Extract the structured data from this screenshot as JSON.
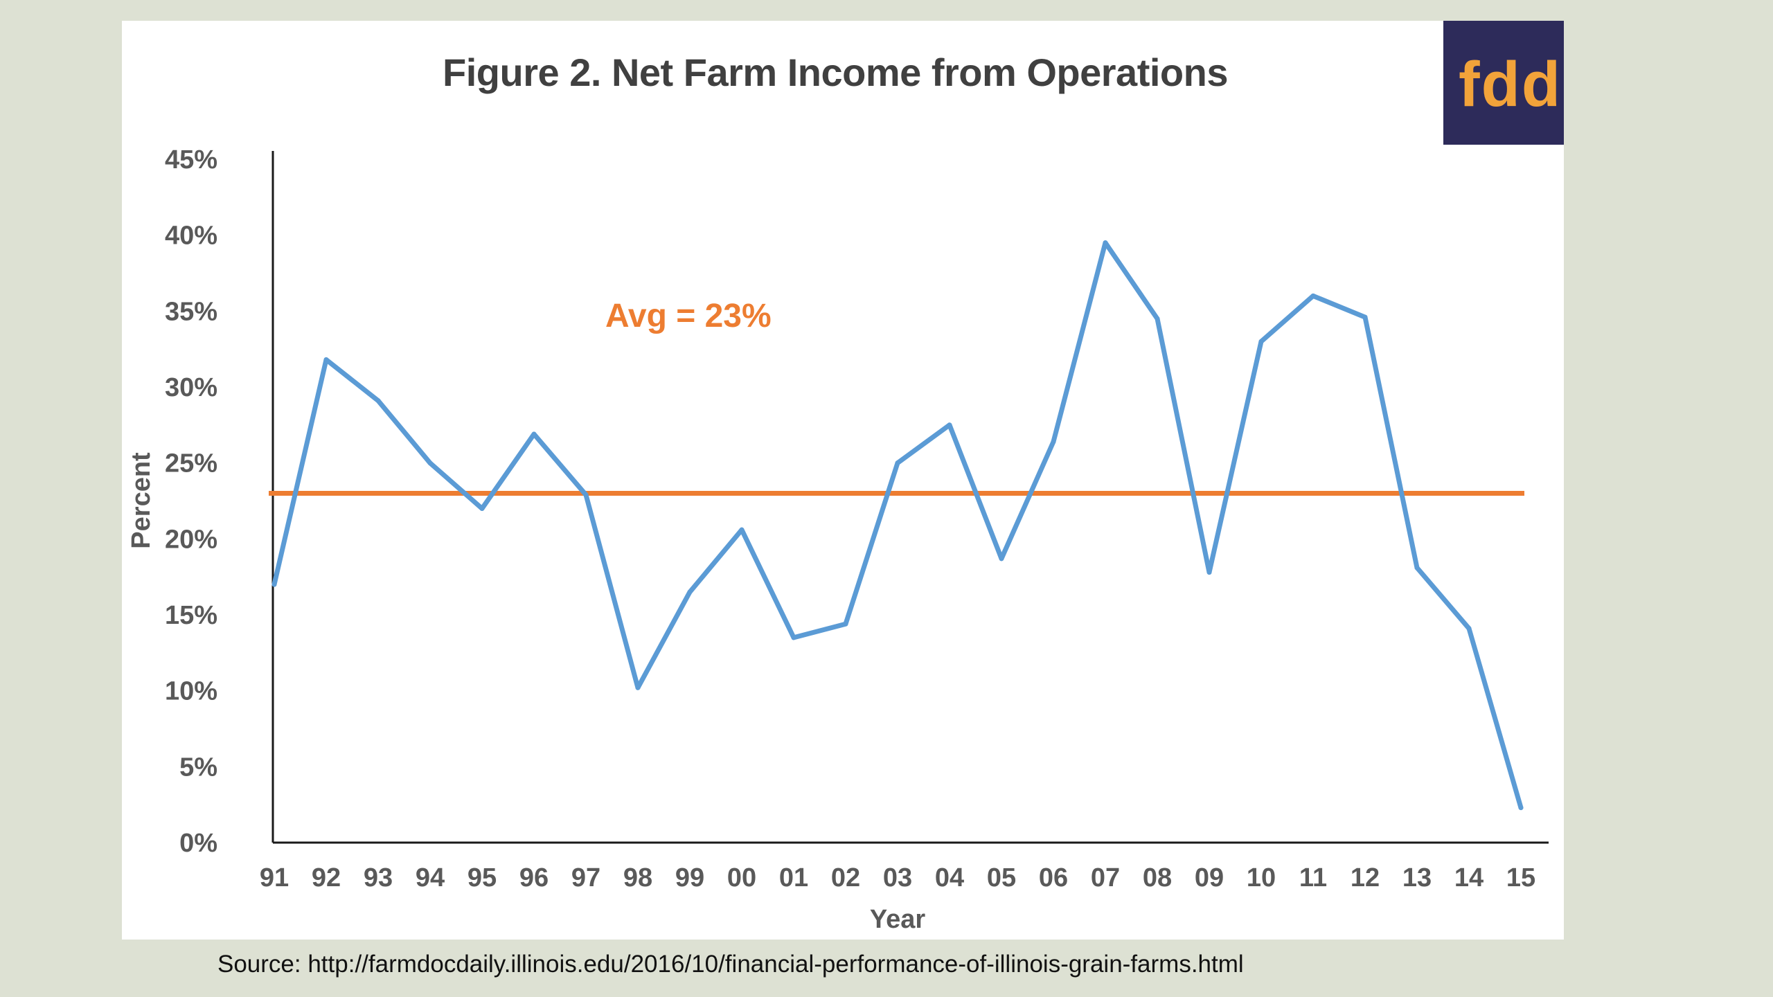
{
  "chart_data": {
    "type": "line",
    "title": "Figure 2. Net Farm Income from Operations",
    "xlabel": "Year",
    "ylabel": "Percent",
    "categories": [
      "91",
      "92",
      "93",
      "94",
      "95",
      "96",
      "97",
      "98",
      "99",
      "00",
      "01",
      "02",
      "03",
      "04",
      "05",
      "06",
      "07",
      "08",
      "09",
      "10",
      "11",
      "12",
      "13",
      "14",
      "15"
    ],
    "series": [
      {
        "name": "Net Farm Income from Operations",
        "values": [
          17.0,
          31.8,
          29.1,
          25.0,
          22.0,
          26.9,
          22.9,
          10.2,
          16.5,
          20.6,
          13.5,
          14.4,
          25.0,
          27.5,
          18.7,
          26.4,
          39.5,
          34.5,
          17.8,
          33.0,
          36.0,
          34.6,
          18.1,
          14.1,
          2.3
        ],
        "color": "#5b9bd5"
      }
    ],
    "reference_line": {
      "label": "Avg = 23%",
      "value": 23,
      "color": "#ed7d31"
    },
    "ylim": [
      0,
      45
    ],
    "yticks": [
      0,
      5,
      10,
      15,
      20,
      25,
      30,
      35,
      40,
      45
    ],
    "ytick_suffix": "%",
    "grid": false,
    "legend": "none"
  },
  "logo": {
    "text": "fdd",
    "background": "#2d2b5a",
    "color": "#f2a33a"
  },
  "source": "Source: http://farmdocdaily.illinois.edu/2016/10/financial-performance-of-illinois-grain-farms.html"
}
